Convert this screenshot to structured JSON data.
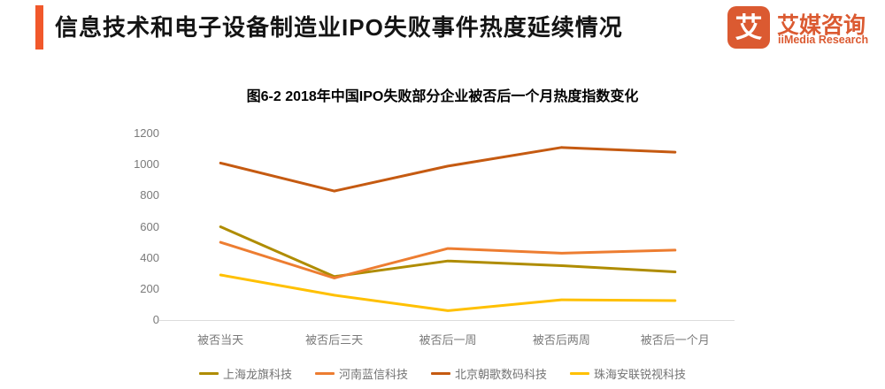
{
  "header": {
    "title": "信息技术和电子设备制造业IPO失败事件热度延续情况",
    "accent_color": "#F1582B"
  },
  "logo": {
    "mark": "艾",
    "name": "艾媒咨询",
    "subtitle": "iiMedia Research",
    "color": "#DB5A31"
  },
  "chart_data": {
    "type": "line",
    "title": "图6-2 2018年中国IPO失败部分企业被否后一个月热度指数变化",
    "categories": [
      "被否当天",
      "被否后三天",
      "被否后一周",
      "被否后两周",
      "被否后一个月"
    ],
    "series": [
      {
        "name": "上海龙旗科技",
        "color": "#AF8C00",
        "values": [
          600,
          280,
          380,
          350,
          310
        ]
      },
      {
        "name": "河南蓝信科技",
        "color": "#ED7D31",
        "values": [
          500,
          270,
          460,
          430,
          450
        ]
      },
      {
        "name": "北京朝歌数码科技",
        "color": "#C55A11",
        "values": [
          1010,
          830,
          990,
          1110,
          1080
        ]
      },
      {
        "name": "珠海安联锐视科技",
        "color": "#FFC000",
        "values": [
          290,
          160,
          60,
          130,
          125
        ]
      }
    ],
    "xlabel": "",
    "ylabel": "",
    "ylim": [
      0,
      1200
    ],
    "y_ticks": [
      0,
      200,
      400,
      600,
      800,
      1000,
      1200
    ],
    "grid": false,
    "legend_position": "bottom",
    "axis_line_color": "#DCDCDC"
  }
}
